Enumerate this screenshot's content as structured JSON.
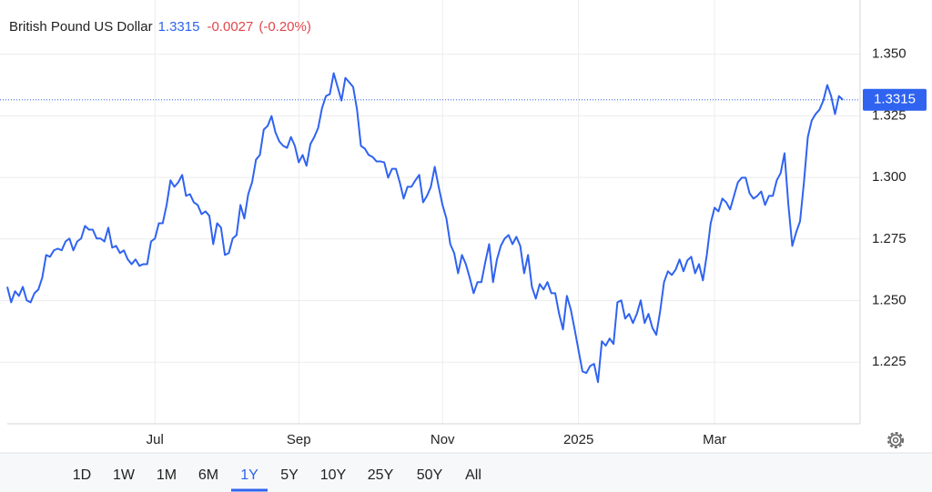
{
  "header": {
    "title": "British Pound US Dollar",
    "last": 1.3315,
    "change": -0.0027,
    "change_pct": "(-0.20%)"
  },
  "chart_data": {
    "type": "line",
    "categories": [
      null,
      null,
      null,
      null,
      null,
      null,
      null,
      null,
      null,
      null,
      null,
      null,
      null,
      null,
      null,
      null,
      null,
      null,
      null,
      null,
      null,
      null,
      null,
      null,
      null,
      null,
      null,
      null,
      null,
      null,
      null,
      null,
      null,
      null,
      null,
      null,
      null,
      null,
      "Jul",
      null,
      null,
      null,
      null,
      null,
      null,
      null,
      null,
      null,
      null,
      null,
      null,
      null,
      null,
      null,
      null,
      null,
      null,
      null,
      null,
      null,
      null,
      null,
      null,
      null,
      null,
      null,
      null,
      null,
      null,
      null,
      null,
      null,
      null,
      null,
      null,
      "Sep",
      null,
      null,
      null,
      null,
      null,
      null,
      null,
      null,
      null,
      null,
      null,
      null,
      null,
      null,
      null,
      null,
      null,
      null,
      null,
      null,
      null,
      null,
      null,
      null,
      null,
      null,
      null,
      null,
      null,
      null,
      null,
      null,
      null,
      null,
      null,
      null,
      "Nov",
      null,
      null,
      null,
      null,
      null,
      null,
      null,
      null,
      null,
      null,
      null,
      null,
      null,
      null,
      null,
      null,
      null,
      null,
      null,
      null,
      null,
      null,
      null,
      null,
      null,
      null,
      null,
      null,
      null,
      null,
      null,
      null,
      null,
      null,
      "2025",
      null,
      null,
      null,
      null,
      null,
      null,
      null,
      null,
      null,
      null,
      null,
      null,
      null,
      null,
      null,
      null,
      null,
      null,
      null,
      null,
      null,
      null,
      null,
      null,
      null,
      null,
      null,
      null,
      null,
      null,
      null,
      null,
      null,
      null,
      "Mar",
      null,
      null,
      null,
      null,
      null,
      null,
      null,
      null,
      null,
      null,
      null,
      null,
      null,
      null,
      null,
      null,
      null,
      null,
      null,
      null,
      null,
      null,
      null,
      null,
      null,
      null,
      null,
      null,
      null,
      null,
      null,
      null,
      null
    ],
    "series": [
      {
        "name": "British Pound US Dollar",
        "color": "#2f63f0",
        "values": [
          1.2556,
          1.2493,
          1.2538,
          1.2519,
          1.2556,
          1.2501,
          1.2493,
          1.253,
          1.2545,
          1.2593,
          1.2685,
          1.2678,
          1.2704,
          1.2711,
          1.2704,
          1.274,
          1.2752,
          1.2704,
          1.274,
          1.2752,
          1.2803,
          1.2788,
          1.2788,
          1.2752,
          1.2752,
          1.274,
          1.2796,
          1.2715,
          1.2722,
          1.2693,
          1.2704,
          1.2667,
          1.2648,
          1.2667,
          1.2641,
          1.2648,
          1.2648,
          1.274,
          1.2752,
          1.2814,
          1.2814,
          1.2888,
          1.2988,
          1.2962,
          1.298,
          1.301,
          1.2925,
          1.2932,
          1.2899,
          1.2888,
          1.2851,
          1.2862,
          1.2844,
          1.2729,
          1.2814,
          1.2796,
          1.2685,
          1.2693,
          1.2752,
          1.2766,
          1.2888,
          1.2833,
          1.2932,
          1.298,
          1.3072,
          1.3091,
          1.3194,
          1.3209,
          1.3249,
          1.3183,
          1.3146,
          1.3128,
          1.312,
          1.3164,
          1.3128,
          1.3061,
          1.3091,
          1.3047,
          1.3135,
          1.3164,
          1.3201,
          1.3282,
          1.333,
          1.3338,
          1.3423,
          1.3367,
          1.3312,
          1.3404,
          1.3386,
          1.3367,
          1.3275,
          1.3128,
          1.3117,
          1.3091,
          1.3083,
          1.3065,
          1.3065,
          1.3061,
          1.2999,
          1.3035,
          1.3035,
          1.298,
          1.2914,
          1.2962,
          1.2962,
          1.2988,
          1.301,
          1.2899,
          1.2925,
          1.2962,
          1.3043,
          1.2962,
          1.2888,
          1.2833,
          1.2729,
          1.2693,
          1.2611,
          1.2685,
          1.2648,
          1.2593,
          1.253,
          1.2575,
          1.2575,
          1.2656,
          1.2729,
          1.2575,
          1.2667,
          1.2722,
          1.2752,
          1.2766,
          1.2729,
          1.2759,
          1.2722,
          1.2611,
          1.2685,
          1.2556,
          1.2508,
          1.2567,
          1.2545,
          1.2575,
          1.253,
          1.253,
          1.2446,
          1.2383,
          1.2519,
          1.2464,
          1.2383,
          1.2298,
          1.2213,
          1.2206,
          1.2235,
          1.2243,
          1.2169,
          1.2335,
          1.2317,
          1.2346,
          1.2324,
          1.2493,
          1.2501,
          1.2427,
          1.2446,
          1.2409,
          1.2446,
          1.2501,
          1.2409,
          1.2446,
          1.239,
          1.2361,
          1.2457,
          1.2575,
          1.2619,
          1.2604,
          1.2626,
          1.2667,
          1.2619,
          1.2663,
          1.2678,
          1.2611,
          1.2648,
          1.2582,
          1.2685,
          1.2814,
          1.2877,
          1.2862,
          1.2914,
          1.2899,
          1.287,
          1.2925,
          1.298,
          1.2999,
          1.2999,
          1.2936,
          1.2914,
          1.2925,
          1.2943,
          1.2888,
          1.2925,
          1.2925,
          1.2988,
          1.3017,
          1.3098,
          1.2888,
          1.2722,
          1.2777,
          1.2822,
          1.298,
          1.3164,
          1.3231,
          1.3257,
          1.3275,
          1.3312,
          1.3375,
          1.333,
          1.3257,
          1.333,
          1.3315
        ]
      }
    ],
    "ylim": [
      1.2,
      1.372
    ],
    "yticks": [
      1.225,
      {
        "value": 1.25,
        "label": "1.250"
      },
      1.275,
      {
        "value": 1.3,
        "label": "1.300"
      },
      1.325,
      {
        "value": 1.35,
        "label": "1.350"
      }
    ],
    "grid": true
  },
  "ranges": [
    "1D",
    "1W",
    "1M",
    "6M",
    "1Y",
    "5Y",
    "10Y",
    "25Y",
    "50Y",
    "All"
  ],
  "selected_range_index": 4
}
